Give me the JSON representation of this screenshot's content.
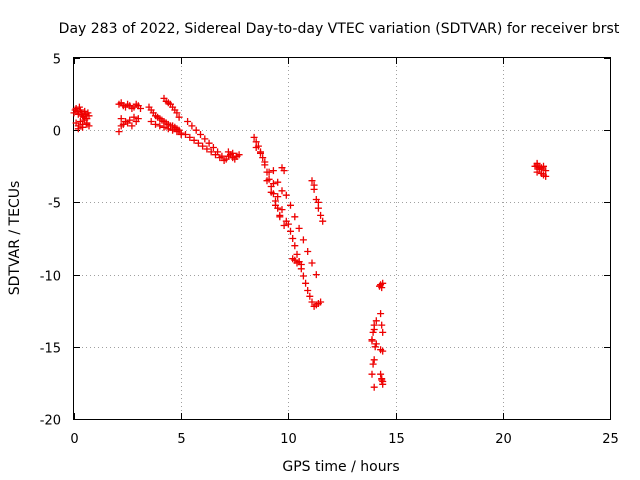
{
  "chart_data": {
    "type": "scatter",
    "title": "Day 283 of 2022, Sidereal Day-to-day VTEC variation (SDTVAR) for receiver brst",
    "xlabel": "GPS time / hours",
    "ylabel": "SDTVAR / TECUs",
    "xlim": [
      0,
      25
    ],
    "ylim": [
      -20,
      5
    ],
    "xticks": [
      0,
      5,
      10,
      15,
      20,
      25
    ],
    "yticks": [
      -20,
      -15,
      -10,
      -5,
      0,
      5
    ],
    "xtick_labels": [
      "0",
      "5",
      "10",
      "15",
      "20",
      "25"
    ],
    "ytick_labels": [
      "-20",
      "-15",
      "-10",
      "-5",
      "0",
      "5"
    ],
    "grid": true,
    "marker": "plus",
    "marker_color": "#ee0000",
    "series": [
      {
        "name": "SDTVAR",
        "x": [
          0.0,
          0.05,
          0.1,
          0.15,
          0.2,
          0.25,
          0.3,
          0.35,
          0.4,
          0.45,
          0.5,
          0.55,
          0.6,
          0.65,
          0.7,
          0.1,
          0.2,
          0.3,
          0.4,
          0.5,
          0.6,
          0.7,
          0.2,
          0.4,
          0.6,
          2.1,
          2.2,
          2.3,
          2.4,
          2.5,
          2.6,
          2.7,
          2.8,
          2.9,
          3.0,
          3.1,
          2.2,
          2.4,
          2.6,
          2.8,
          3.0,
          2.3,
          2.5,
          2.7,
          2.9,
          2.2,
          2.1,
          3.5,
          3.6,
          3.7,
          3.8,
          3.9,
          4.0,
          4.1,
          4.2,
          4.3,
          4.4,
          4.5,
          4.6,
          4.7,
          4.8,
          4.9,
          5.0,
          3.6,
          3.8,
          4.0,
          4.2,
          4.4,
          4.6,
          4.8,
          5.0,
          4.2,
          4.3,
          4.4,
          4.5,
          4.6,
          4.7,
          4.8,
          4.9,
          5.2,
          5.4,
          5.6,
          5.8,
          6.0,
          6.2,
          6.4,
          6.6,
          6.8,
          7.0,
          5.3,
          5.5,
          5.7,
          5.9,
          6.1,
          6.3,
          6.5,
          6.7,
          6.9,
          7.1,
          7.2,
          7.3,
          7.4,
          7.5,
          7.6,
          7.7,
          7.2,
          7.4,
          7.6,
          8.4,
          8.5,
          8.6,
          8.7,
          8.8,
          8.9,
          9.0,
          9.1,
          9.2,
          9.3,
          9.4,
          9.5,
          9.6,
          8.5,
          8.7,
          8.9,
          9.1,
          9.3,
          9.5,
          9.7,
          9.9,
          9.0,
          9.2,
          9.4,
          9.6,
          9.8,
          9.3,
          9.5,
          9.7,
          10.0,
          10.1,
          10.2,
          10.3,
          10.4,
          10.5,
          10.6,
          10.7,
          10.8,
          10.9,
          11.0,
          11.1,
          11.2,
          11.3,
          11.4,
          11.5,
          9.9,
          10.1,
          10.3,
          10.5,
          10.7,
          10.9,
          11.1,
          11.3,
          10.2,
          10.3,
          10.4,
          10.5,
          10.6,
          11.1,
          11.2,
          11.3,
          11.4,
          11.5,
          11.6,
          11.2,
          11.4,
          9.7,
          9.8,
          13.9,
          13.95,
          14.0,
          14.05,
          14.1,
          13.95,
          14.0,
          14.1,
          13.9,
          14.0,
          13.9,
          14.0,
          14.25,
          14.3,
          14.35,
          14.4,
          14.3,
          14.35,
          14.4,
          14.3,
          14.4,
          14.3,
          14.35,
          14.4,
          14.35,
          14.4,
          21.5,
          21.6,
          21.7,
          21.8,
          21.9,
          22.0,
          21.6,
          21.8,
          22.0,
          21.7,
          21.9,
          21.6,
          21.8
        ],
        "y": [
          1.2,
          1.4,
          1.5,
          1.3,
          1.1,
          1.6,
          1.4,
          1.2,
          1.0,
          0.9,
          1.3,
          1.1,
          0.8,
          1.2,
          1.0,
          0.5,
          0.3,
          0.6,
          0.4,
          0.7,
          0.5,
          0.3,
          0.1,
          0.2,
          0.4,
          1.8,
          1.9,
          1.7,
          1.6,
          1.8,
          1.7,
          1.5,
          1.6,
          1.8,
          1.7,
          1.5,
          0.8,
          0.6,
          0.7,
          0.9,
          0.8,
          0.4,
          0.5,
          0.3,
          0.6,
          0.3,
          -0.1,
          1.6,
          1.4,
          1.2,
          1.0,
          0.9,
          0.8,
          0.7,
          0.6,
          0.5,
          0.4,
          0.3,
          0.3,
          0.2,
          0.1,
          0.0,
          -0.2,
          0.6,
          0.4,
          0.3,
          0.2,
          0.1,
          0.0,
          -0.1,
          -0.3,
          2.2,
          2.0,
          1.9,
          1.8,
          1.6,
          1.4,
          1.2,
          0.9,
          -0.3,
          -0.5,
          -0.7,
          -0.9,
          -1.1,
          -1.3,
          -1.5,
          -1.7,
          -1.9,
          -2.1,
          0.6,
          0.3,
          0.0,
          -0.3,
          -0.6,
          -0.9,
          -1.2,
          -1.5,
          -1.8,
          -2.0,
          -1.8,
          -1.7,
          -1.9,
          -2.0,
          -1.8,
          -1.7,
          -1.5,
          -1.6,
          -1.8,
          -0.5,
          -0.8,
          -1.1,
          -1.5,
          -1.9,
          -2.4,
          -2.9,
          -3.4,
          -3.9,
          -4.4,
          -4.9,
          -5.4,
          -5.9,
          -1.2,
          -1.6,
          -2.2,
          -2.9,
          -3.7,
          -4.6,
          -5.5,
          -6.3,
          -3.5,
          -4.3,
          -5.2,
          -6.0,
          -6.6,
          -2.8,
          -3.6,
          -4.2,
          -6.5,
          -7.0,
          -7.5,
          -8.0,
          -8.6,
          -9.1,
          -9.6,
          -10.1,
          -10.6,
          -11.1,
          -11.5,
          -11.9,
          -12.2,
          -12.1,
          -12.0,
          -11.9,
          -4.5,
          -5.2,
          -6.0,
          -6.8,
          -7.6,
          -8.4,
          -9.2,
          -10.0,
          -8.9,
          -9.0,
          -9.2,
          -9.1,
          -9.3,
          -3.5,
          -4.1,
          -4.8,
          -5.4,
          -5.9,
          -6.3,
          -3.8,
          -5.0,
          -2.6,
          -2.8,
          -14.5,
          -14.0,
          -13.5,
          -15.0,
          -14.8,
          -16.2,
          -15.9,
          -13.2,
          -16.9,
          -17.8,
          -14.6,
          -13.8,
          -10.8,
          -10.7,
          -10.9,
          -10.6,
          -12.7,
          -13.5,
          -14.0,
          -15.2,
          -15.3,
          -16.9,
          -17.3,
          -17.6,
          -17.2,
          -17.4,
          -2.5,
          -2.4,
          -2.6,
          -2.7,
          -2.5,
          -2.8,
          -2.9,
          -3.0,
          -3.2,
          -2.7,
          -3.1,
          -2.3,
          -2.6
        ]
      }
    ]
  }
}
